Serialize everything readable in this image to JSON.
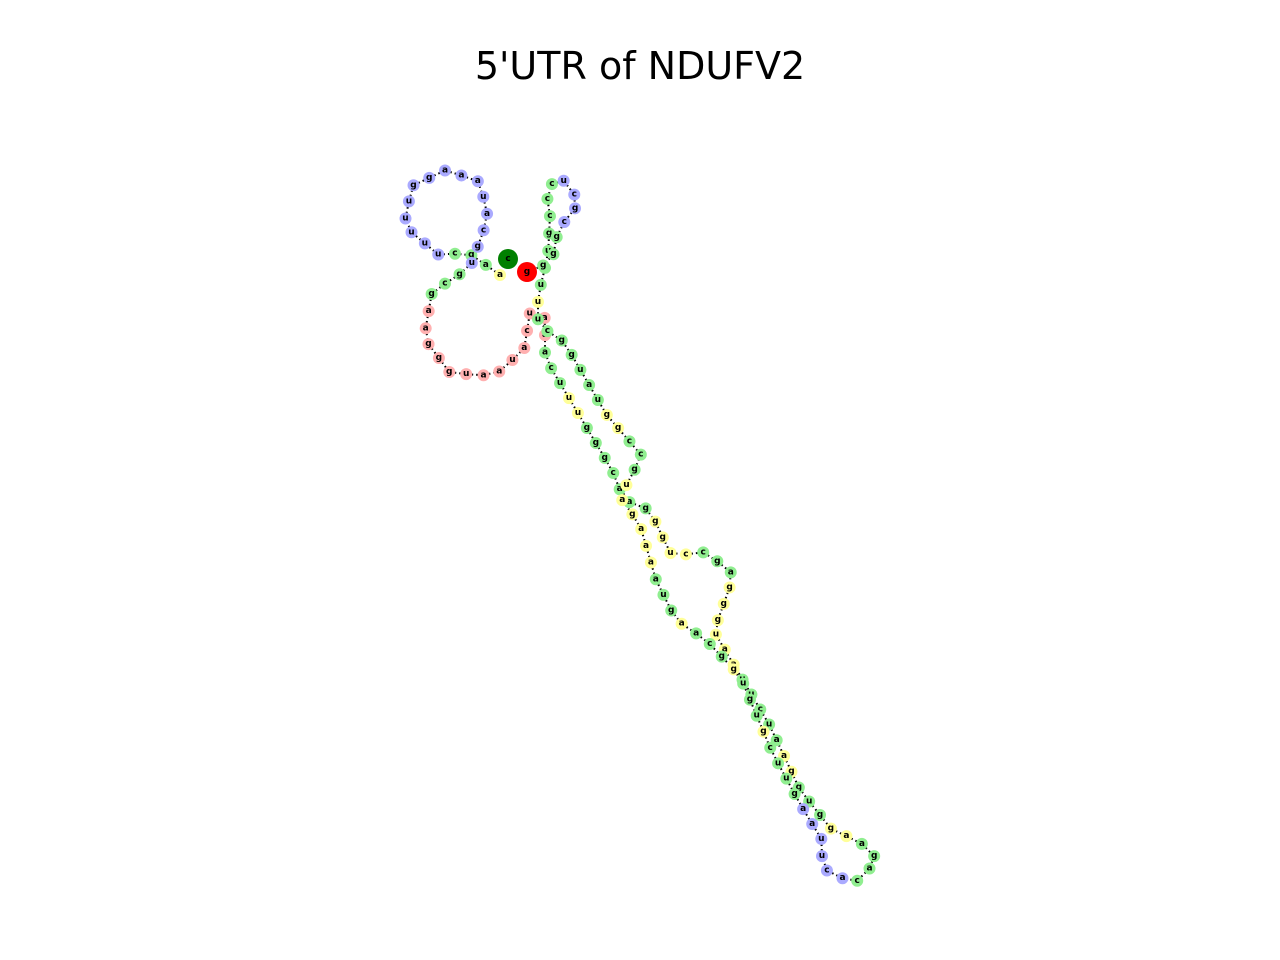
{
  "title": "5'UTR of NDUFV2",
  "colors": {
    "stem": "#90ee90",
    "hairpin": "#aaaaff",
    "multiloop": "#ffb0b0",
    "interior": "#ffff99",
    "five_prime": "#008000",
    "three_prime": "#ff0000",
    "pair_line": "#ff0000",
    "backbone": "#000000"
  },
  "five_prime_end": "c",
  "three_prime_end": "g",
  "segments": [
    {
      "region": "exterior",
      "seq": "a"
    },
    {
      "region": "stem",
      "seq": "agc"
    },
    {
      "region": "hairpin",
      "seq": "uuuuuggaaauacgu"
    },
    {
      "region": "stem",
      "seq": "gcg"
    },
    {
      "region": "multiloop",
      "seq": "aaggguaauacuaa"
    },
    {
      "region": "stem",
      "seq": "acu"
    },
    {
      "region": "interior",
      "seq": "uu"
    },
    {
      "region": "stem",
      "seq": "gggcaag"
    },
    {
      "region": "interior",
      "seq": "gguc"
    },
    {
      "region": "stem",
      "seq": "cga"
    },
    {
      "region": "interior",
      "seq": "ggguaa"
    },
    {
      "region": "stem",
      "seq": "uucua"
    },
    {
      "region": "interior",
      "seq": "ag"
    },
    {
      "region": "stem",
      "seq": "gug"
    },
    {
      "region": "interior",
      "seq": "ga"
    },
    {
      "region": "stem",
      "seq": "agac"
    },
    {
      "region": "hairpin",
      "seq": "acuuaa"
    },
    {
      "region": "stem",
      "seq": "guuc"
    },
    {
      "region": "interior",
      "seq": "g"
    },
    {
      "region": "stem",
      "seq": "ugu"
    },
    {
      "region": "interior",
      "seq": "g"
    },
    {
      "region": "stem",
      "seq": "gca"
    },
    {
      "region": "interior",
      "seq": "a"
    },
    {
      "region": "stem",
      "seq": "gua"
    },
    {
      "region": "interior",
      "seq": "aaagau"
    },
    {
      "region": "stem",
      "seq": "gcc"
    },
    {
      "region": "interior",
      "seq": "gg"
    },
    {
      "region": "stem",
      "seq": "uauggcu"
    },
    {
      "region": "interior",
      "seq": "u"
    },
    {
      "region": "stem",
      "seq": "ucu"
    },
    {
      "region": "stem",
      "seq": "gccc"
    },
    {
      "region": "hairpin",
      "seq": "ucgc"
    },
    {
      "region": "stem",
      "seq": "gggc"
    }
  ]
}
